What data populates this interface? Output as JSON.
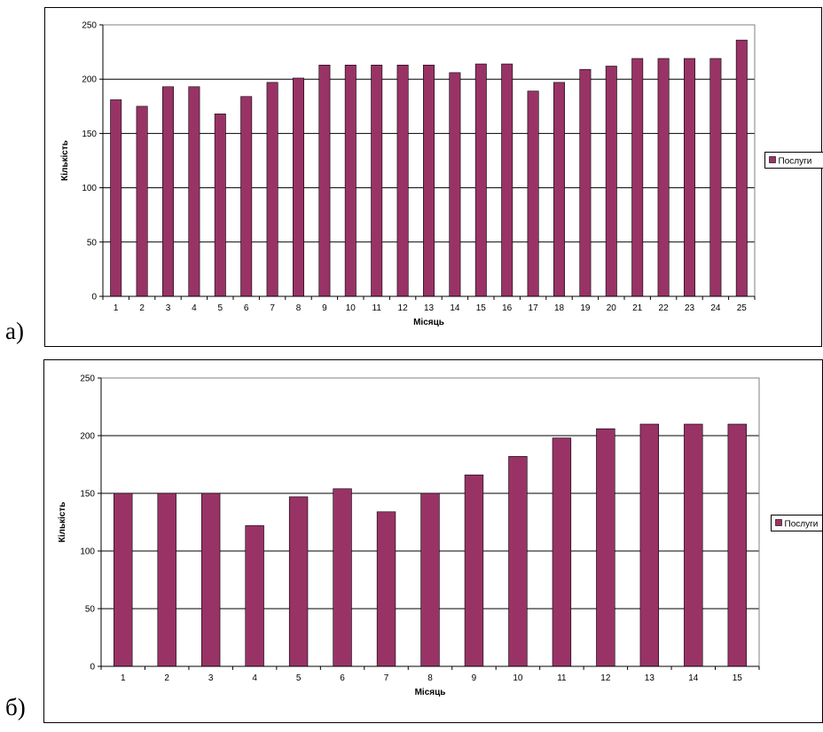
{
  "panels": [
    {
      "letter": "а)"
    },
    {
      "letter": "б)"
    }
  ],
  "chart_data": [
    {
      "type": "bar",
      "title": "",
      "xlabel": "Місяць",
      "ylabel": "Кількість",
      "ylim": [
        0,
        250
      ],
      "yticks": [
        0,
        50,
        100,
        150,
        200,
        250
      ],
      "grid": true,
      "legend_position": "right",
      "categories": [
        "1",
        "2",
        "3",
        "4",
        "5",
        "6",
        "7",
        "8",
        "9",
        "10",
        "11",
        "12",
        "13",
        "14",
        "15",
        "16",
        "17",
        "18",
        "19",
        "20",
        "21",
        "22",
        "23",
        "24",
        "25"
      ],
      "series": [
        {
          "name": "Послуги",
          "color": "#993366",
          "values": [
            181,
            175,
            193,
            193,
            168,
            184,
            197,
            201,
            213,
            213,
            213,
            213,
            213,
            206,
            214,
            214,
            189,
            197,
            209,
            212,
            219,
            219,
            219,
            219,
            236
          ]
        }
      ]
    },
    {
      "type": "bar",
      "title": "",
      "xlabel": "Місяць",
      "ylabel": "Кількість",
      "ylim": [
        0,
        250
      ],
      "yticks": [
        0,
        50,
        100,
        150,
        200,
        250
      ],
      "grid": true,
      "legend_position": "right",
      "categories": [
        "1",
        "2",
        "3",
        "4",
        "5",
        "6",
        "7",
        "8",
        "9",
        "10",
        "11",
        "12",
        "13",
        "14",
        "15"
      ],
      "series": [
        {
          "name": "Послуги",
          "color": "#993366",
          "values": [
            150,
            150,
            150,
            122,
            147,
            154,
            134,
            150,
            166,
            182,
            198,
            206,
            210,
            210,
            210
          ]
        }
      ]
    }
  ]
}
